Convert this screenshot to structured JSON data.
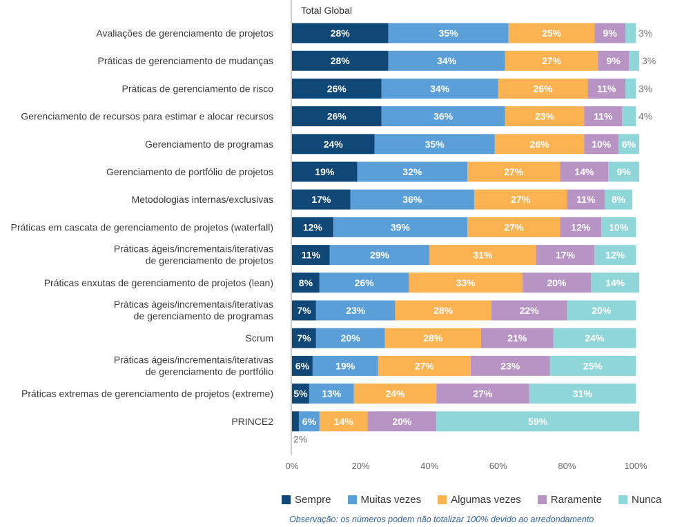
{
  "colors": {
    "sempre": "#0f4776",
    "muitas": "#5a9fd8",
    "algumas": "#fbb251",
    "raramente": "#b794c4",
    "nunca": "#8fd6d8"
  },
  "legend": [
    "Sempre",
    "Muitas vezes",
    "Algumas vezes",
    "Raramente",
    "Nunca"
  ],
  "note": "Observação: os números podem não totalizar 100% devido ao arredondamento",
  "chart_data": {
    "type": "bar",
    "orientation": "horizontal",
    "stacked": true,
    "title": "Total Global",
    "xlim": [
      0,
      100
    ],
    "xticks": [
      "0%",
      "20%",
      "40%",
      "60%",
      "80%",
      "100%"
    ],
    "categories": [
      [
        "Avaliações de gerenciamento de projetos"
      ],
      [
        "Práticas de gerenciamento de mudanças"
      ],
      [
        "Práticas de gerenciamento de risco"
      ],
      [
        "Gerenciamento de recursos para estimar e alocar recursos"
      ],
      [
        "Gerenciamento de programas"
      ],
      [
        "Gerenciamento de portfólio de projetos"
      ],
      [
        "Metodologias internas/exclusivas"
      ],
      [
        "Práticas em cascata de gerenciamento de projetos (waterfall)"
      ],
      [
        "Práticas ágeis/incrementais/iterativas",
        "de gerenciamento de projetos"
      ],
      [
        "Práticas enxutas de gerenciamento de projetos (lean)"
      ],
      [
        "Práticas ágeis/incrementais/iterativas",
        "de gerenciamento de programas"
      ],
      [
        "Scrum"
      ],
      [
        "Práticas ágeis/incrementais/iterativas",
        "de gerenciamento de portfólio"
      ],
      [
        "Práticas extremas de gerenciamento de projetos (extreme)"
      ],
      [
        "PRINCE2"
      ]
    ],
    "series": [
      {
        "name": "Sempre",
        "values": [
          28,
          28,
          26,
          26,
          24,
          19,
          17,
          12,
          11,
          8,
          7,
          7,
          6,
          5,
          2
        ]
      },
      {
        "name": "Muitas vezes",
        "values": [
          35,
          34,
          34,
          36,
          35,
          32,
          36,
          39,
          29,
          26,
          23,
          20,
          19,
          13,
          6
        ]
      },
      {
        "name": "Algumas vezes",
        "values": [
          25,
          27,
          26,
          23,
          26,
          27,
          27,
          27,
          31,
          33,
          28,
          28,
          27,
          24,
          14
        ]
      },
      {
        "name": "Raramente",
        "values": [
          9,
          9,
          11,
          11,
          10,
          14,
          11,
          12,
          17,
          20,
          22,
          21,
          23,
          27,
          20
        ]
      },
      {
        "name": "Nunca",
        "values": [
          3,
          3,
          3,
          4,
          6,
          9,
          8,
          10,
          12,
          14,
          20,
          24,
          25,
          31,
          59
        ]
      }
    ]
  }
}
